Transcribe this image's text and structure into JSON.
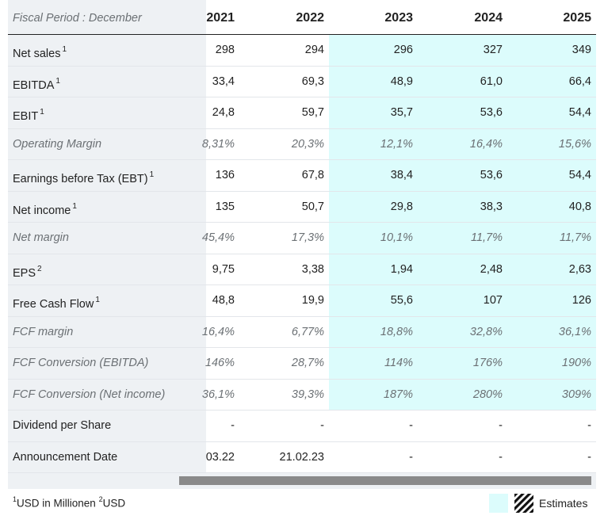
{
  "header": {
    "period_label": "Fiscal Period : December",
    "years": [
      "2021",
      "2022",
      "2023",
      "2024",
      "2025"
    ]
  },
  "colors": {
    "estimate_bg": "#dcfcfc",
    "label_col_bg": "#eef1f4",
    "scroll_thumb": "#8a8a8a"
  },
  "rows": [
    {
      "label": "Net sales",
      "sup": "1",
      "style": "normal",
      "values": [
        "298",
        "294",
        "296",
        "327",
        "349"
      ]
    },
    {
      "label": "EBITDA",
      "sup": "1",
      "style": "normal",
      "values": [
        "33,4",
        "69,3",
        "48,9",
        "61,0",
        "66,4"
      ]
    },
    {
      "label": "EBIT",
      "sup": "1",
      "style": "normal",
      "values": [
        "24,8",
        "59,7",
        "35,7",
        "53,6",
        "54,4"
      ]
    },
    {
      "label": "Operating Margin",
      "sup": "",
      "style": "pct",
      "values": [
        "8,31%",
        "20,3%",
        "12,1%",
        "16,4%",
        "15,6%"
      ]
    },
    {
      "label": "Earnings before Tax (EBT)",
      "sup": "1",
      "style": "normal",
      "values": [
        "136",
        "67,8",
        "38,4",
        "53,6",
        "54,4"
      ]
    },
    {
      "label": "Net income",
      "sup": "1",
      "style": "normal",
      "values": [
        "135",
        "50,7",
        "29,8",
        "38,3",
        "40,8"
      ]
    },
    {
      "label": "Net margin",
      "sup": "",
      "style": "pct",
      "values": [
        "45,4%",
        "17,3%",
        "10,1%",
        "11,7%",
        "11,7%"
      ]
    },
    {
      "label": "EPS",
      "sup": "2",
      "style": "normal",
      "values": [
        "9,75",
        "3,38",
        "1,94",
        "2,48",
        "2,63"
      ]
    },
    {
      "label": "Free Cash Flow",
      "sup": "1",
      "style": "normal",
      "values": [
        "48,8",
        "19,9",
        "55,6",
        "107",
        "126"
      ]
    },
    {
      "label": "FCF margin",
      "sup": "",
      "style": "pct",
      "values": [
        "16,4%",
        "6,77%",
        "18,8%",
        "32,8%",
        "36,1%"
      ]
    },
    {
      "label": "FCF Conversion (EBITDA)",
      "sup": "",
      "style": "pct",
      "values": [
        "146%",
        "28,7%",
        "114%",
        "176%",
        "190%"
      ]
    },
    {
      "label": "FCF Conversion (Net income)",
      "sup": "",
      "style": "pct",
      "values": [
        "36,1%",
        "39,3%",
        "187%",
        "280%",
        "309%"
      ]
    },
    {
      "label": "Dividend per Share",
      "sup": "",
      "style": "normal",
      "values": [
        "-",
        "-",
        "-",
        "-",
        "-"
      ]
    },
    {
      "label": "Announcement Date",
      "sup": "",
      "style": "normal",
      "values": [
        "03.22",
        "21.02.23",
        "-",
        "-",
        "-"
      ]
    }
  ],
  "footnote": {
    "sup1": "1",
    "text1": "USD in Millionen ",
    "sup2": "2",
    "text2": "USD"
  },
  "legend": {
    "estimates_label": "Estimates"
  }
}
